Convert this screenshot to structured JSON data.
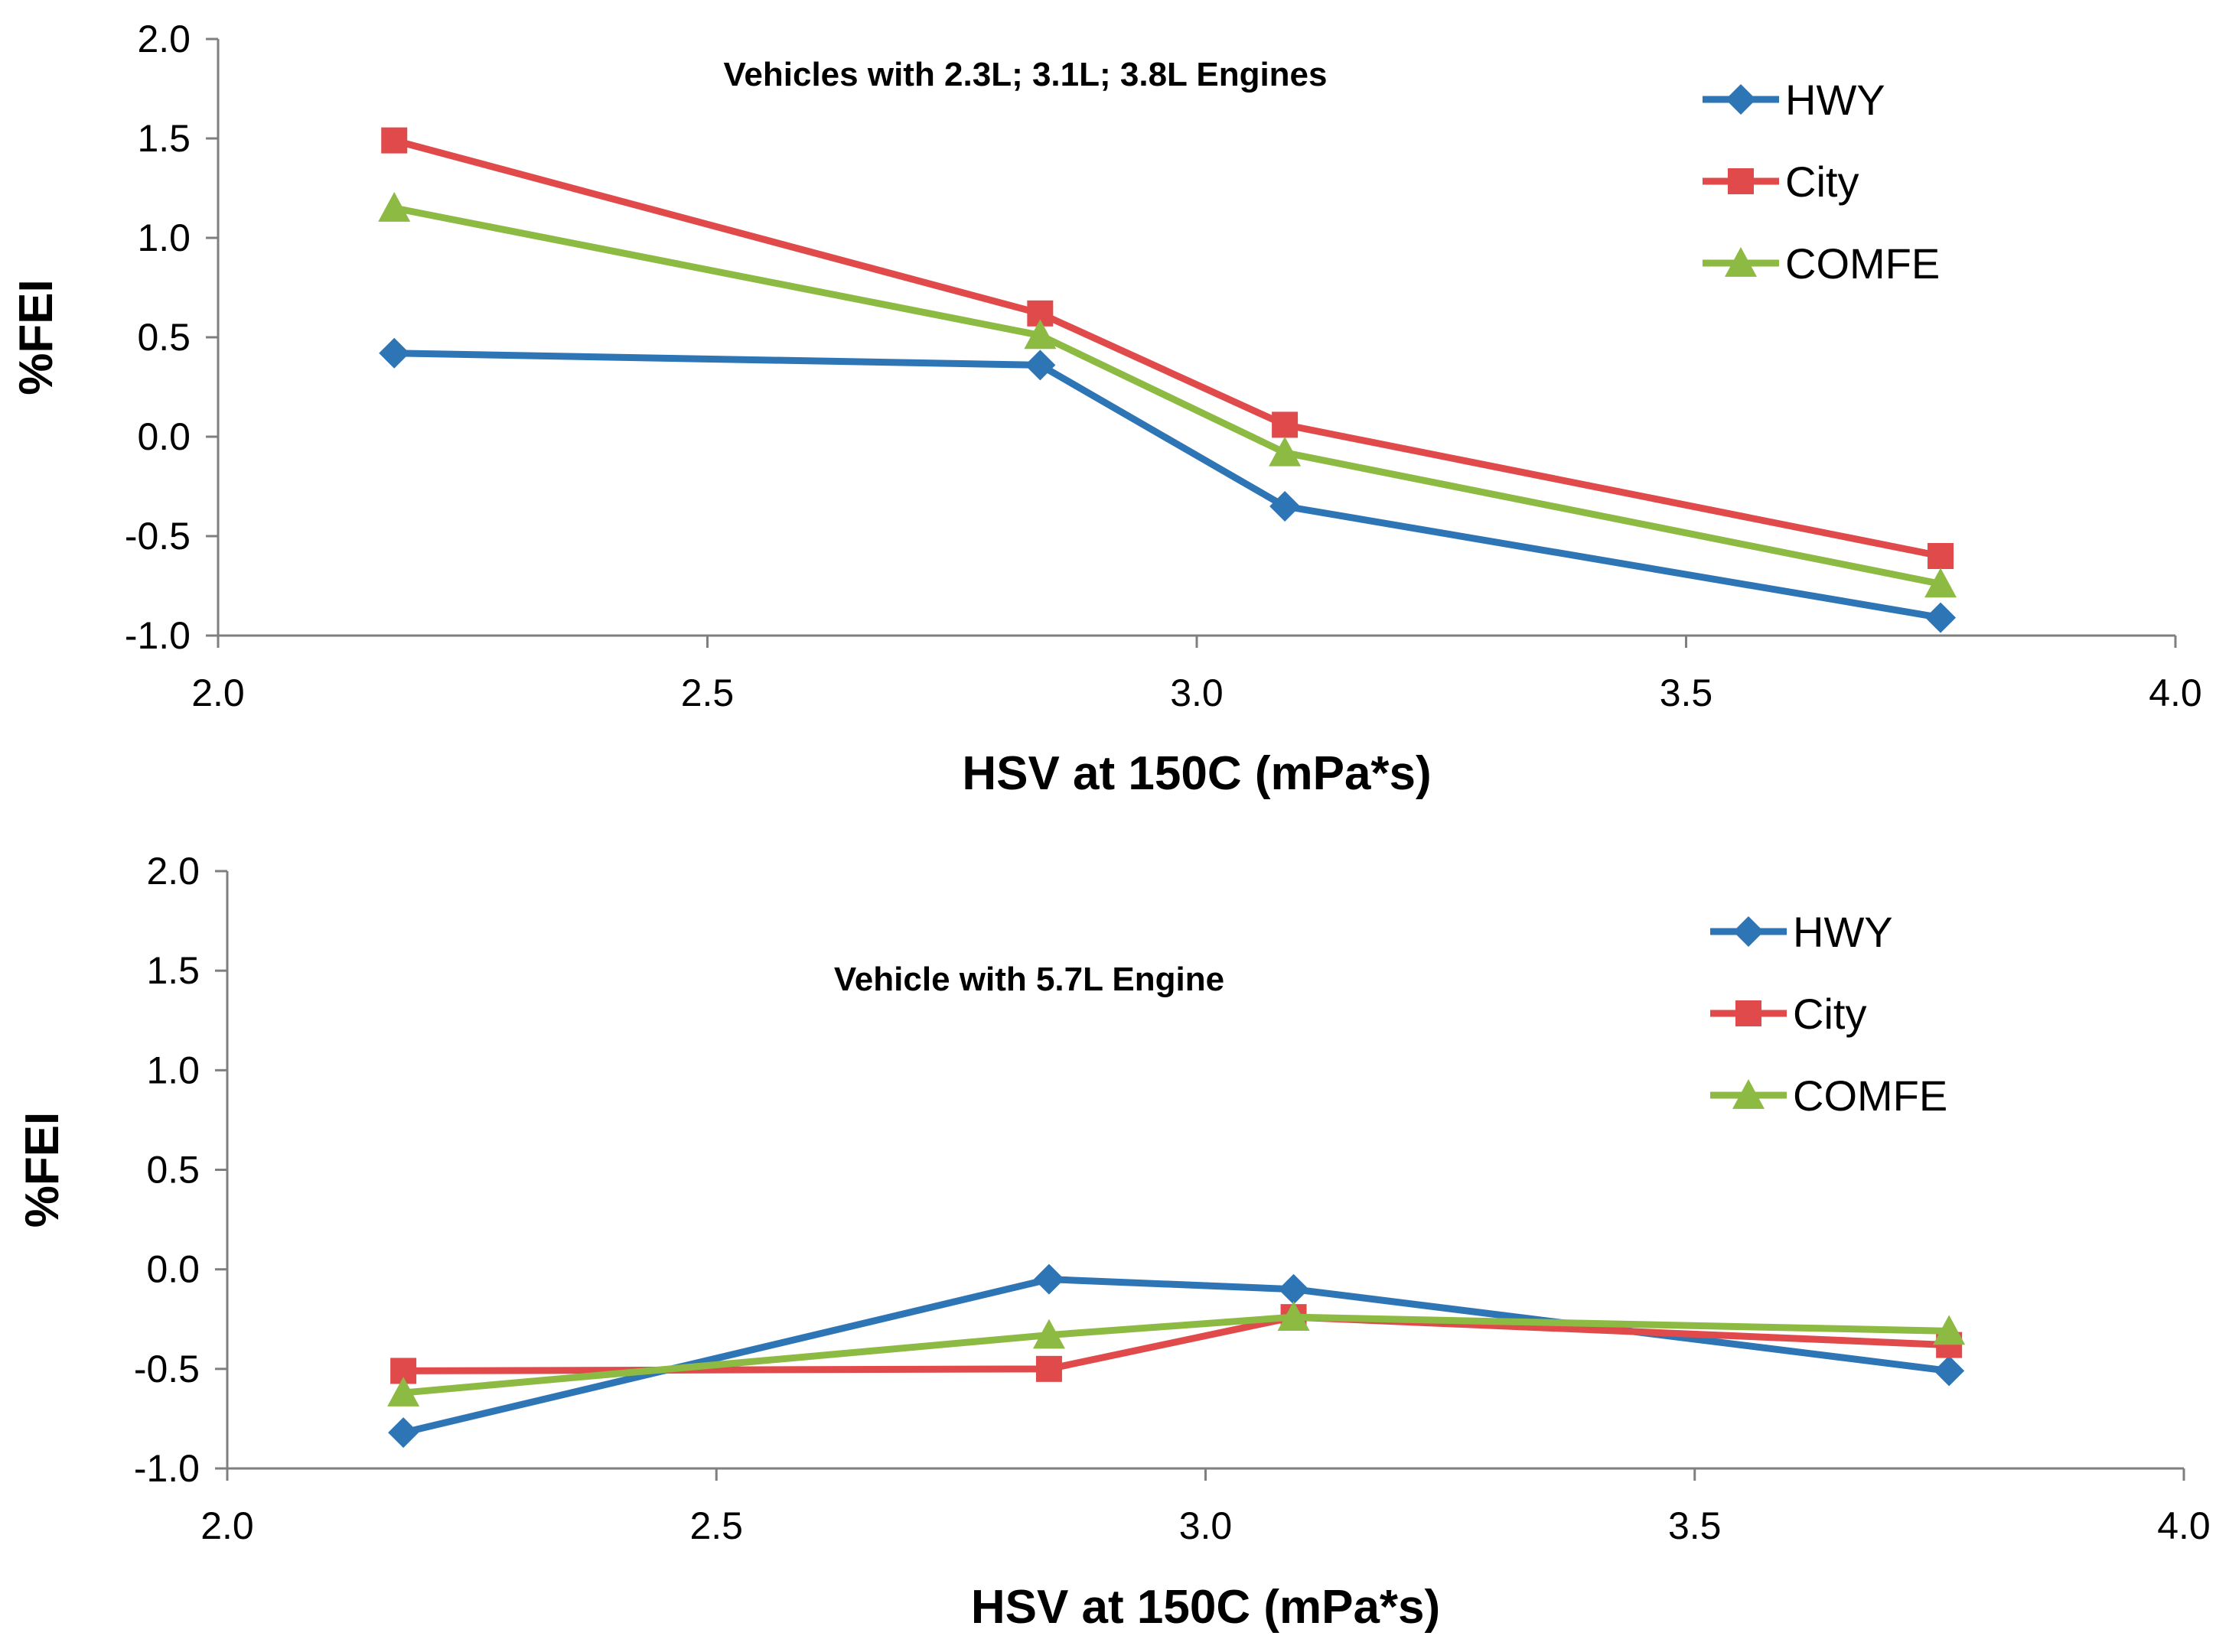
{
  "chart_data": [
    {
      "type": "line",
      "title": "Vehicles with 2.3L; 3.1L; 3.8L Engines",
      "xlabel": "HSV at 150C (mPa*s)",
      "ylabel": "%FEI",
      "xlim": [
        2.0,
        4.0
      ],
      "ylim": [
        -1.0,
        2.0
      ],
      "xticks": [
        "2.0",
        "2.5",
        "3.0",
        "3.5",
        "4.0"
      ],
      "yticks": [
        "-1.0",
        "-0.5",
        "0.0",
        "0.5",
        "1.0",
        "1.5",
        "2.0"
      ],
      "legend_position": "top-right",
      "x": [
        2.18,
        2.84,
        3.09,
        3.76
      ],
      "series": [
        {
          "name": "HWY",
          "color": "#2E75B6",
          "marker": "diamond",
          "values": [
            0.42,
            0.36,
            -0.35,
            -0.91
          ]
        },
        {
          "name": "City",
          "color": "#E04A4A",
          "marker": "square",
          "values": [
            1.49,
            0.62,
            0.06,
            -0.6
          ]
        },
        {
          "name": "COMFE",
          "color": "#8DBA43",
          "marker": "triangle",
          "values": [
            1.15,
            0.51,
            -0.08,
            -0.74
          ]
        }
      ]
    },
    {
      "type": "line",
      "title": "Vehicle with 5.7L Engine",
      "xlabel": "HSV at 150C (mPa*s)",
      "ylabel": "%FEI",
      "xlim": [
        2.0,
        4.0
      ],
      "ylim": [
        -1.0,
        2.0
      ],
      "xticks": [
        "2.0",
        "2.5",
        "3.0",
        "3.5",
        "4.0"
      ],
      "yticks": [
        "-1.0",
        "-0.5",
        "0.0",
        "0.5",
        "1.0",
        "1.5",
        "2.0"
      ],
      "legend_position": "top-right",
      "x": [
        2.18,
        2.84,
        3.09,
        3.76
      ],
      "series": [
        {
          "name": "HWY",
          "color": "#2E75B6",
          "marker": "diamond",
          "values": [
            -0.82,
            -0.05,
            -0.1,
            -0.51
          ]
        },
        {
          "name": "City",
          "color": "#E04A4A",
          "marker": "square",
          "values": [
            -0.51,
            -0.5,
            -0.24,
            -0.38
          ]
        },
        {
          "name": "COMFE",
          "color": "#8DBA43",
          "marker": "triangle",
          "values": [
            -0.62,
            -0.33,
            -0.24,
            -0.31
          ]
        }
      ]
    }
  ]
}
